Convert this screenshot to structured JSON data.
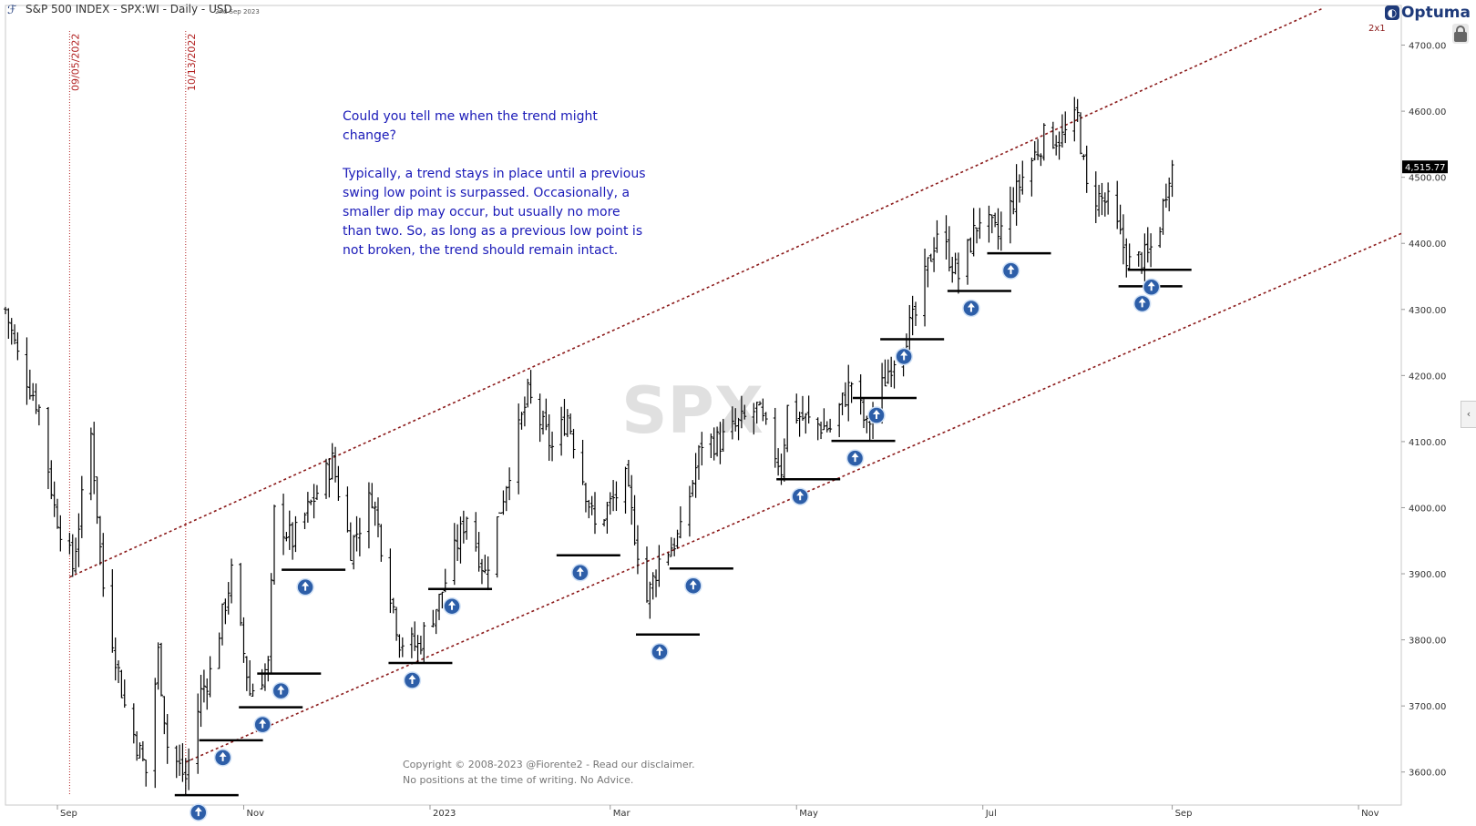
{
  "header": {
    "title": "S&P 500 INDEX - SPX:WI - Daily - USD",
    "date": "2nd Sep 2023"
  },
  "brand": {
    "name": "Optuma"
  },
  "scale_label": "2x1",
  "watermark": "SPX",
  "annotation": {
    "question": "Could you tell me when the trend might change?",
    "answer": "Typically, a trend stays in place until a previous swing low point is surpassed. Occasionally, a smaller dip may occur, but usually no more than two. So, as long as a previous low point is not broken, the trend should remain intact."
  },
  "copyright": {
    "line1": "Copyright © 2008-2023 @Fiorente2 -  Read our disclaimer.",
    "line2": "No positions at the time of writing. No Advice."
  },
  "colors": {
    "bars": "#000000",
    "trendline": "#8b1a1a",
    "vline": "#b22222",
    "text_blue": "#1a1ab8",
    "marker": "#2d5ea8",
    "price_tag_bg": "#000000"
  },
  "icons": [
    "optuma-logo-icon",
    "lock-icon",
    "collapse-arrow-icon",
    "up-arrow-icon"
  ],
  "chart_data": {
    "type": "ohlc-bar",
    "title": "S&P 500 INDEX - SPX:WI - Daily - USD",
    "ylim": [
      3550,
      4760
    ],
    "xlim": [
      "2022-08-15",
      "2023-11-15"
    ],
    "y_ticks": [
      "3600.00",
      "3700.00",
      "3800.00",
      "3900.00",
      "4000.00",
      "4100.00",
      "4200.00",
      "4300.00",
      "4400.00",
      "4500.00",
      "4600.00",
      "4700.00"
    ],
    "x_ticks": [
      {
        "date": "2022-09-01",
        "label": "Sep"
      },
      {
        "date": "2022-11-01",
        "label": "Nov"
      },
      {
        "date": "2023-01-01",
        "label": "2023"
      },
      {
        "date": "2023-03-01",
        "label": "Mar"
      },
      {
        "date": "2023-05-01",
        "label": "May"
      },
      {
        "date": "2023-07-01",
        "label": "Jul"
      },
      {
        "date": "2023-09-01",
        "label": "Sep"
      },
      {
        "date": "2023-11-01",
        "label": "Nov"
      }
    ],
    "last_price": "4,515.77",
    "vertical_lines": [
      {
        "date": "2022-09-05",
        "label": "09/05/2022"
      },
      {
        "date": "2022-10-13",
        "label": "10/13/2022"
      }
    ],
    "channel_lines": [
      {
        "name": "upper",
        "from": {
          "date": "2022-09-05",
          "value": 3895
        },
        "to": {
          "date": "2023-10-20",
          "value": 4755
        }
      },
      {
        "name": "lower",
        "from": {
          "date": "2022-10-13",
          "value": 3615
        },
        "to": {
          "date": "2023-11-15",
          "value": 4415
        }
      }
    ],
    "swing_lows": [
      {
        "date": "2022-10-13",
        "value": 3565
      },
      {
        "date": "2022-10-21",
        "value": 3648
      },
      {
        "date": "2022-11-03",
        "value": 3698
      },
      {
        "date": "2022-11-09",
        "value": 3749
      },
      {
        "date": "2022-11-17",
        "value": 3906
      },
      {
        "date": "2022-12-22",
        "value": 3765
      },
      {
        "date": "2023-01-04",
        "value": 3877
      },
      {
        "date": "2023-02-15",
        "value": 3928
      },
      {
        "date": "2023-03-13",
        "value": 3808
      },
      {
        "date": "2023-03-24",
        "value": 3908
      },
      {
        "date": "2023-04-28",
        "value": 4043
      },
      {
        "date": "2023-05-16",
        "value": 4101
      },
      {
        "date": "2023-05-23",
        "value": 4166
      },
      {
        "date": "2023-06-01",
        "value": 4255
      },
      {
        "date": "2023-06-23",
        "value": 4328
      },
      {
        "date": "2023-07-06",
        "value": 4385
      },
      {
        "date": "2023-08-18",
        "value": 4335
      },
      {
        "date": "2023-08-21",
        "value": 4360
      }
    ],
    "price_path": [
      {
        "date": "2022-08-15",
        "value": 4300
      },
      {
        "date": "2022-08-19",
        "value": 4230
      },
      {
        "date": "2022-08-26",
        "value": 4150
      },
      {
        "date": "2022-08-31",
        "value": 4000
      },
      {
        "date": "2022-09-06",
        "value": 3910
      },
      {
        "date": "2022-09-12",
        "value": 4110
      },
      {
        "date": "2022-09-16",
        "value": 3880
      },
      {
        "date": "2022-09-23",
        "value": 3700
      },
      {
        "date": "2022-09-30",
        "value": 3600
      },
      {
        "date": "2022-10-04",
        "value": 3780
      },
      {
        "date": "2022-10-07",
        "value": 3640
      },
      {
        "date": "2022-10-13",
        "value": 3590
      },
      {
        "date": "2022-10-18",
        "value": 3720
      },
      {
        "date": "2022-10-21",
        "value": 3750
      },
      {
        "date": "2022-10-28",
        "value": 3900
      },
      {
        "date": "2022-11-03",
        "value": 3720
      },
      {
        "date": "2022-11-09",
        "value": 3760
      },
      {
        "date": "2022-11-11",
        "value": 3990
      },
      {
        "date": "2022-11-17",
        "value": 3950
      },
      {
        "date": "2022-11-30",
        "value": 4070
      },
      {
        "date": "2022-12-06",
        "value": 3940
      },
      {
        "date": "2022-12-13",
        "value": 4020
      },
      {
        "date": "2022-12-22",
        "value": 3800
      },
      {
        "date": "2022-12-28",
        "value": 3790
      },
      {
        "date": "2023-01-04",
        "value": 3860
      },
      {
        "date": "2023-01-13",
        "value": 3990
      },
      {
        "date": "2023-01-19",
        "value": 3900
      },
      {
        "date": "2023-01-27",
        "value": 4060
      },
      {
        "date": "2023-02-02",
        "value": 4170
      },
      {
        "date": "2023-02-10",
        "value": 4090
      },
      {
        "date": "2023-02-15",
        "value": 4140
      },
      {
        "date": "2023-02-24",
        "value": 3970
      },
      {
        "date": "2023-03-06",
        "value": 4040
      },
      {
        "date": "2023-03-13",
        "value": 3860
      },
      {
        "date": "2023-03-17",
        "value": 3920
      },
      {
        "date": "2023-03-24",
        "value": 3960
      },
      {
        "date": "2023-03-31",
        "value": 4100
      },
      {
        "date": "2023-04-06",
        "value": 4100
      },
      {
        "date": "2023-04-18",
        "value": 4150
      },
      {
        "date": "2023-04-26",
        "value": 4060
      },
      {
        "date": "2023-04-28",
        "value": 4150
      },
      {
        "date": "2023-05-05",
        "value": 4130
      },
      {
        "date": "2023-05-12",
        "value": 4120
      },
      {
        "date": "2023-05-19",
        "value": 4190
      },
      {
        "date": "2023-05-24",
        "value": 4120
      },
      {
        "date": "2023-06-01",
        "value": 4220
      },
      {
        "date": "2023-06-09",
        "value": 4290
      },
      {
        "date": "2023-06-16",
        "value": 4420
      },
      {
        "date": "2023-06-23",
        "value": 4350
      },
      {
        "date": "2023-06-30",
        "value": 4440
      },
      {
        "date": "2023-07-06",
        "value": 4410
      },
      {
        "date": "2023-07-14",
        "value": 4500
      },
      {
        "date": "2023-07-21",
        "value": 4560
      },
      {
        "date": "2023-07-27",
        "value": 4560
      },
      {
        "date": "2023-08-01",
        "value": 4590
      },
      {
        "date": "2023-08-04",
        "value": 4480
      },
      {
        "date": "2023-08-11",
        "value": 4460
      },
      {
        "date": "2023-08-18",
        "value": 4370
      },
      {
        "date": "2023-08-24",
        "value": 4380
      },
      {
        "date": "2023-08-28",
        "value": 4430
      },
      {
        "date": "2023-08-31",
        "value": 4510
      },
      {
        "date": "2023-09-01",
        "value": 4515
      }
    ]
  }
}
